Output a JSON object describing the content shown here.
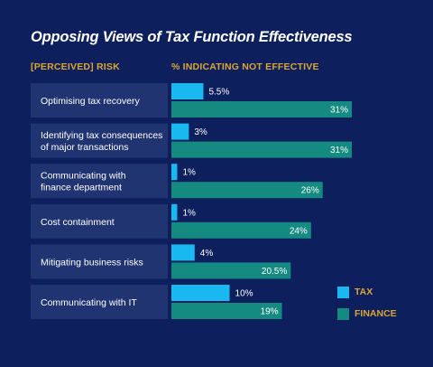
{
  "title": "Opposing Views of Tax Function Effectiveness",
  "risk_header": "[PERCEIVED] RISK",
  "pct_header": "% INDICATING NOT EFFECTIVE",
  "colors": {
    "background": "#0d1f5c",
    "tax": "#19b8f0",
    "finance": "#148a80",
    "category_box": "#213472",
    "header": "#d9a733"
  },
  "chart_data": {
    "type": "bar",
    "orientation": "horizontal",
    "xlim": [
      0,
      35
    ],
    "categories": [
      [
        "Optimising tax recovery"
      ],
      [
        "Identifying tax consequences",
        "of major transactions"
      ],
      [
        "Communicating with",
        "finance department"
      ],
      [
        "Cost containment"
      ],
      [
        "Mitigating business risks"
      ],
      [
        "Communicating with IT"
      ]
    ],
    "series": [
      {
        "name": "TAX",
        "values": [
          5.5,
          3,
          1,
          1,
          4,
          10
        ],
        "labels": [
          "5.5%",
          "3%",
          "1%",
          "1%",
          "4%",
          "10%"
        ]
      },
      {
        "name": "FINANCE",
        "values": [
          31,
          31,
          26,
          24,
          20.5,
          19
        ],
        "labels": [
          "31%",
          "31%",
          "26%",
          "24%",
          "20.5%",
          "19%"
        ]
      }
    ],
    "legend": {
      "position": "right",
      "entries": [
        "TAX",
        "FINANCE"
      ]
    }
  }
}
